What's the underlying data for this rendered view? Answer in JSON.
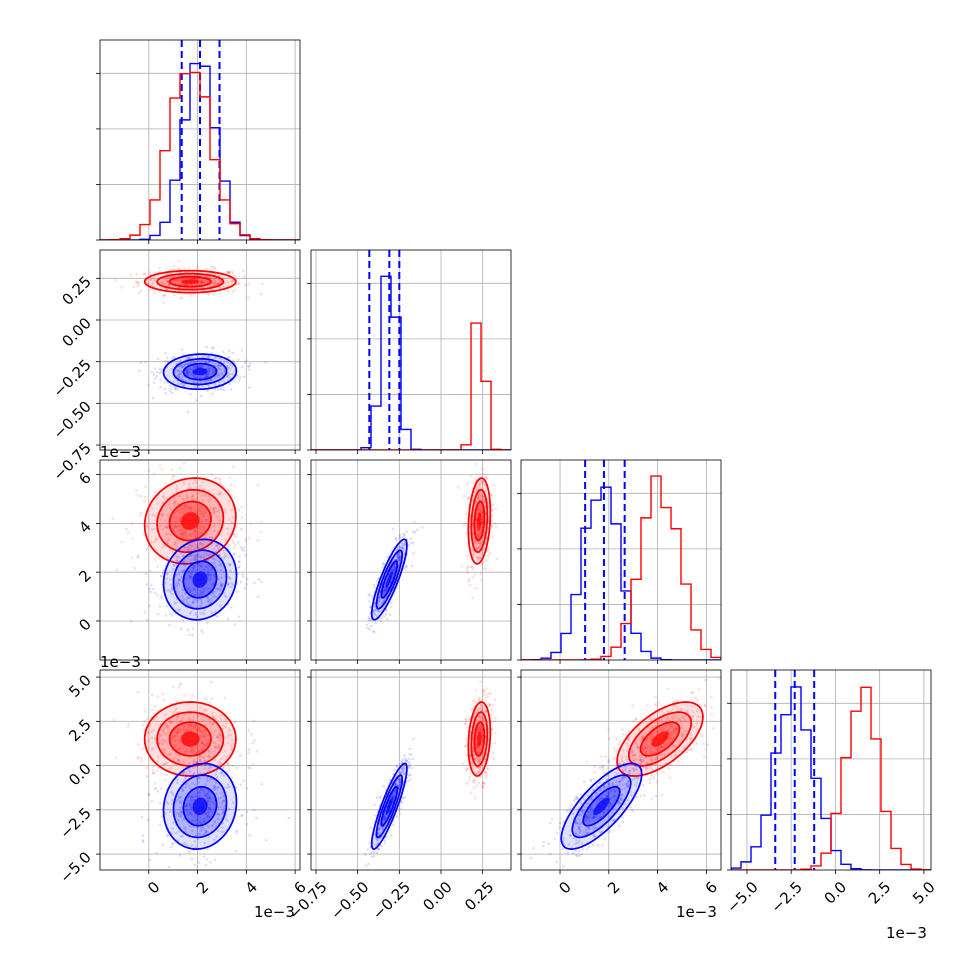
{
  "chart_data": {
    "type": "corner",
    "title": "",
    "colors": {
      "series_a": "#0000ff",
      "series_b": "#ff0000",
      "grid": "#b0b0b0"
    },
    "grid": true,
    "parameters": [
      {
        "range": [
          -0.002,
          0.0062
        ],
        "ticks": [
          {
            "v": 0,
            "label": "0"
          },
          {
            "v": 0.002,
            "label": "2"
          },
          {
            "v": 0.004,
            "label": "4"
          },
          {
            "v": 0.006,
            "label": "6"
          }
        ],
        "offset": "1e−3"
      },
      {
        "range": [
          -0.78,
          0.42
        ],
        "ticks": [
          {
            "v": -0.75,
            "label": "−0.75"
          },
          {
            "v": -0.5,
            "label": "−0.50"
          },
          {
            "v": -0.25,
            "label": "−0.25"
          },
          {
            "v": 0.0,
            "label": "0.00"
          },
          {
            "v": 0.25,
            "label": "0.25"
          }
        ],
        "offset": ""
      },
      {
        "range": [
          -0.0016,
          0.0066
        ],
        "ticks": [
          {
            "v": 0,
            "label": "0"
          },
          {
            "v": 0.002,
            "label": "2"
          },
          {
            "v": 0.004,
            "label": "4"
          },
          {
            "v": 0.006,
            "label": "6"
          }
        ],
        "offset": "1e−3"
      },
      {
        "range": [
          -0.0059,
          0.0054
        ],
        "ticks": [
          {
            "v": -0.005,
            "label": "−5.0"
          },
          {
            "v": -0.0025,
            "label": "−2.5"
          },
          {
            "v": 0,
            "label": "0.0"
          },
          {
            "v": 0.0025,
            "label": "2.5"
          },
          {
            "v": 0.005,
            "label": "5.0"
          }
        ],
        "offset": "1e−3"
      }
    ],
    "series": [
      {
        "key": "blue",
        "color": "#0000ff",
        "means": [
          0.0021,
          -0.31,
          0.0017,
          -0.0023
        ],
        "sds": [
          0.00068,
          0.048,
          0.00075,
          0.0011
        ],
        "corr": [
          [
            1,
            0.05,
            0.1,
            0.1
          ],
          [
            0.05,
            1,
            0.85,
            0.88
          ],
          [
            0.1,
            0.85,
            1,
            0.75
          ],
          [
            0.1,
            0.88,
            0.75,
            1
          ]
        ],
        "quantiles": [
          [
            0.00135,
            0.0021,
            0.0029
          ],
          [
            -0.43,
            -0.31,
            -0.25
          ],
          [
            0.00103,
            0.0018,
            0.00265
          ],
          [
            -0.0034,
            -0.0023,
            -0.0012
          ]
        ]
      },
      {
        "key": "red",
        "color": "#ff0000",
        "means": [
          0.0017,
          0.23,
          0.0041,
          0.0015
        ],
        "sds": [
          0.00085,
          0.03,
          0.0008,
          0.00095
        ],
        "corr": [
          [
            1,
            0,
            0.1,
            0
          ],
          [
            0,
            1,
            0.2,
            0.2
          ],
          [
            0.1,
            0.2,
            1,
            0.6
          ],
          [
            0,
            0.2,
            0.6,
            1
          ]
        ],
        "quantiles": []
      }
    ]
  }
}
